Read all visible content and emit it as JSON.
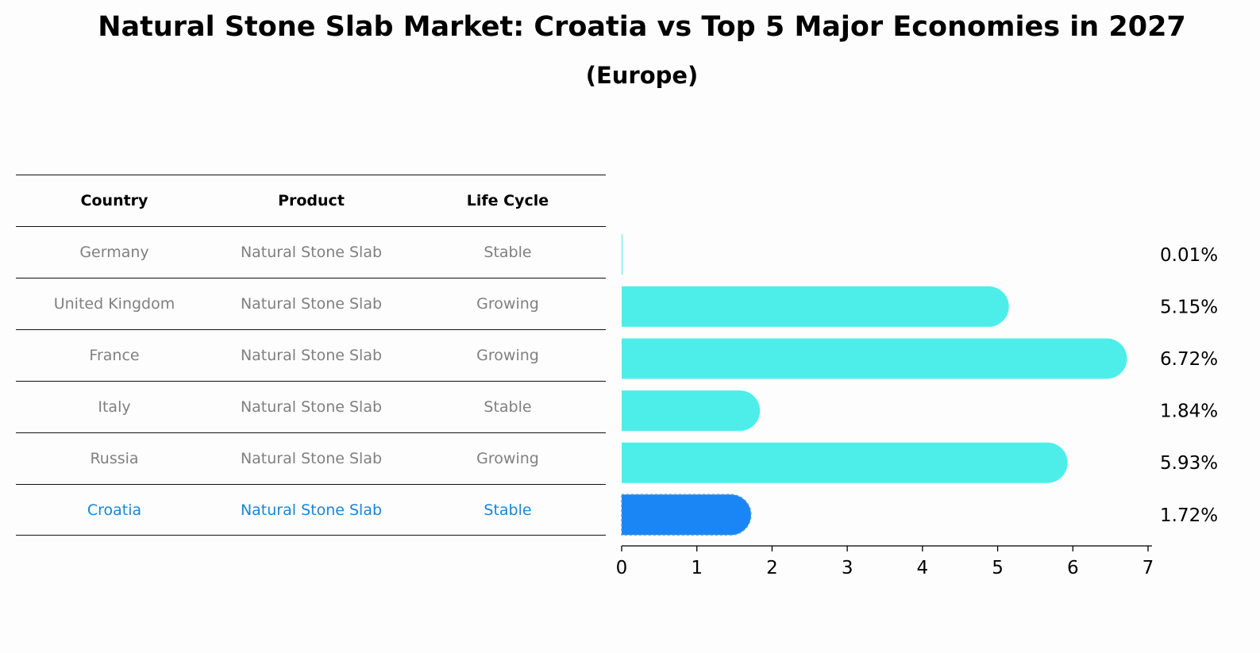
{
  "title": "Natural Stone Slab Market: Croatia vs Top 5 Major Economies in 2027",
  "subtitle": "(Europe)",
  "table": {
    "headers": [
      "Country",
      "Product",
      "Life Cycle"
    ],
    "rows": [
      [
        "Germany",
        "Natural Stone Slab",
        "Stable"
      ],
      [
        "United Kingdom",
        "Natural Stone Slab",
        "Growing"
      ],
      [
        "France",
        "Natural Stone Slab",
        "Growing"
      ],
      [
        "Italy",
        "Natural Stone Slab",
        "Stable"
      ],
      [
        "Russia",
        "Natural Stone Slab",
        "Growing"
      ],
      [
        "Croatia",
        "Natural Stone Slab",
        "Stable"
      ]
    ]
  },
  "colors": {
    "bar": "#4deeea",
    "highlight": "#1a85f5"
  },
  "chart_data": {
    "type": "bar",
    "orientation": "horizontal",
    "categories": [
      "Germany",
      "United Kingdom",
      "France",
      "Italy",
      "Russia",
      "Croatia"
    ],
    "values": [
      0.01,
      5.15,
      6.72,
      1.84,
      5.93,
      1.72
    ],
    "value_labels": [
      "0.01%",
      "5.15%",
      "6.72%",
      "1.84%",
      "5.93%",
      "1.72%"
    ],
    "highlight_category": "Croatia",
    "xlim": [
      0,
      7
    ],
    "xticks": [
      "0",
      "1",
      "2",
      "3",
      "4",
      "5",
      "6",
      "7"
    ],
    "grid": false
  }
}
